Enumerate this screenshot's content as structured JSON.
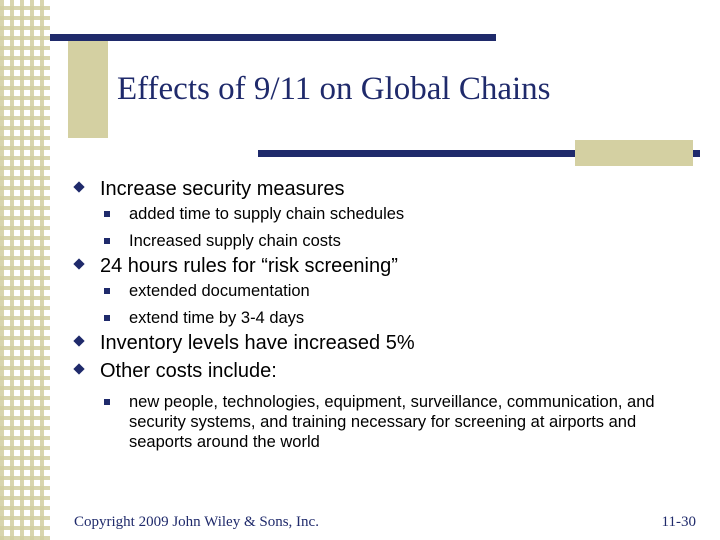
{
  "title": "Effects of 9/11 on Global Chains",
  "bullets": [
    {
      "text": "Increase security measures",
      "sub": [
        "added time to supply chain schedules",
        "Increased supply chain costs"
      ]
    },
    {
      "text": "24 hours rules for “risk screening”",
      "sub": [
        "extended documentation",
        "extend time by 3-4 days"
      ]
    },
    {
      "text": "Inventory levels have increased 5%",
      "sub": []
    },
    {
      "text": "Other costs include:",
      "sub": [
        "new people, technologies, equipment, surveillance, communication, and security systems, and training necessary for screening at airports and seaports around the world"
      ]
    }
  ],
  "footer": {
    "copyright": "Copyright 2009 John Wiley & Sons, Inc.",
    "page": "11-30"
  },
  "colors": {
    "navy": "#1f2a6b",
    "tan": "#d4d0a2"
  }
}
